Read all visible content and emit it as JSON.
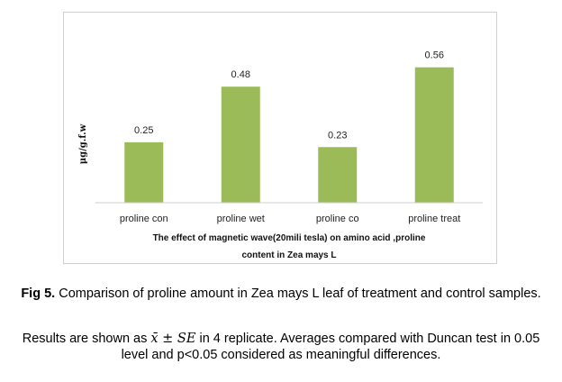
{
  "chart_data": {
    "type": "bar",
    "categories": [
      "proline con",
      "proline wet",
      "proline co",
      "proline treat"
    ],
    "values": [
      0.25,
      0.48,
      0.23,
      0.56
    ],
    "data_labels": [
      "0.25",
      "0.48",
      "0.23",
      "0.56"
    ],
    "ylabel": "μg/g.f.w",
    "xlabel_line1": "The effect of magnetic wave(20mili tesla) on amino acid ,proline",
    "xlabel_line2": "content in Zea mays L",
    "ylim": [
      0,
      0.6
    ],
    "bar_color": "#9BBB59",
    "grid": false,
    "legend": "none"
  },
  "caption": {
    "label": "Fig 5.",
    "text": " Comparison of proline amount in Zea mays L leaf of treatment and control samples."
  },
  "note": {
    "prefix": "Results are shown as ",
    "formula": "x̄ ± SE",
    "suffix": " in 4 replicate. Averages compared with Duncan test in 0.05 level and p<0.05 considered as meaningful differences."
  }
}
